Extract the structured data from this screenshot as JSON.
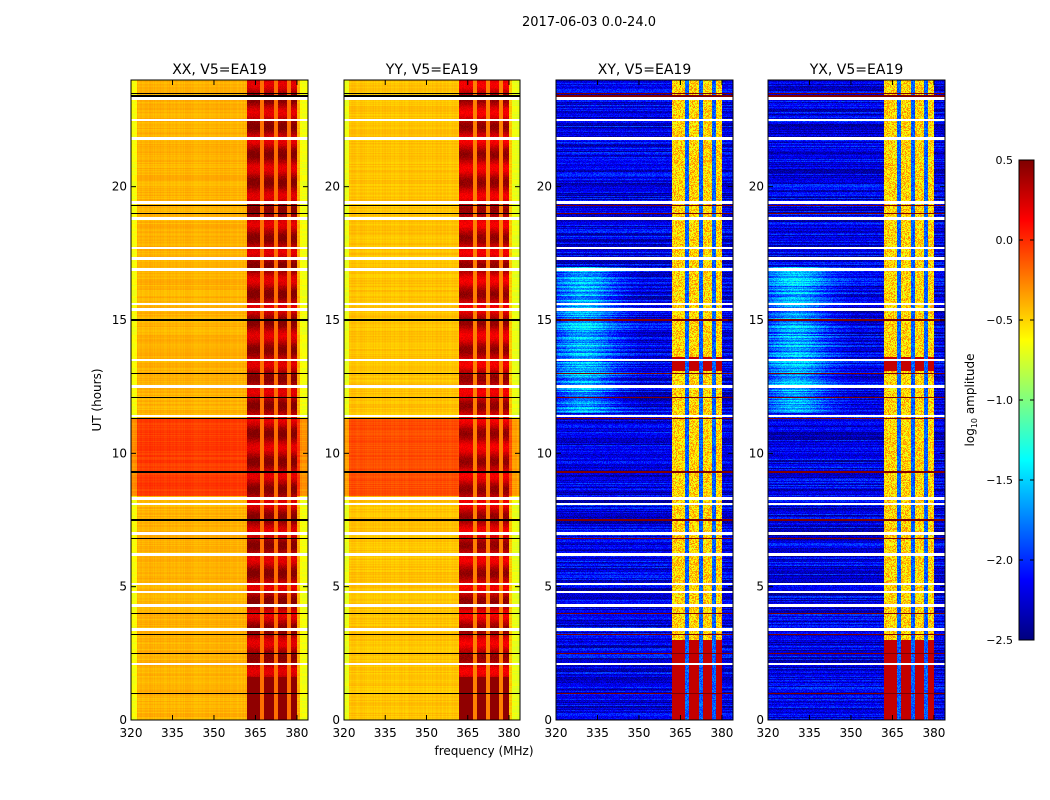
{
  "chart_data": {
    "type": "heatmap",
    "suptitle": "2017-06-03 0.0-24.0",
    "xlabel": "frequency (MHz)",
    "ylabel": "UT (hours)",
    "xlim": [
      320,
      384
    ],
    "ylim": [
      0,
      24
    ],
    "xticks": [
      "320",
      "335",
      "350",
      "365",
      "380"
    ],
    "yticks": [
      "0",
      "5",
      "10",
      "15",
      "20"
    ],
    "panels": [
      {
        "title": "XX, V5=EA19",
        "kind": "auto",
        "base_log_amp": -0.4,
        "band_log_amp": 0.3
      },
      {
        "title": "YY, V5=EA19",
        "kind": "auto",
        "base_log_amp": -0.45,
        "band_log_amp": 0.25
      },
      {
        "title": "XY, V5=EA19",
        "kind": "cross",
        "base_log_amp": -2.2,
        "band_log_amp": -0.6
      },
      {
        "title": "YX, V5=EA19",
        "kind": "cross",
        "base_log_amp": -2.2,
        "band_log_amp": -0.6
      }
    ],
    "rfi_band_MHz": [
      362,
      380
    ],
    "bright_interval_UT": [
      8.4,
      11.3
    ],
    "flagged_UT": [
      23.3,
      22.5,
      21.8,
      19.4,
      18.8,
      17.7,
      17.3,
      16.9,
      15.6,
      15.4,
      13.5,
      12.5,
      11.4,
      8.3,
      8.1,
      7.0,
      6.2,
      5.1,
      4.8,
      4.3,
      3.4,
      2.1
    ],
    "dark_rows_UT": [
      23.5,
      23.4,
      19.3,
      19.0,
      15.0,
      13.0,
      12.1,
      11.3,
      9.3,
      7.5,
      6.8,
      4.0,
      3.2,
      2.5,
      1.0
    ],
    "colorbar": {
      "label": "log10 amplitude",
      "label_main": "log",
      "label_sub": "10",
      "label_rest": " amplitude",
      "range": [
        -2.5,
        0.5
      ],
      "ticks": [
        "0.5",
        "0.0",
        "−0.5",
        "−1.0",
        "−1.5",
        "−2.0",
        "−2.5"
      ],
      "colormap": "jet"
    }
  }
}
